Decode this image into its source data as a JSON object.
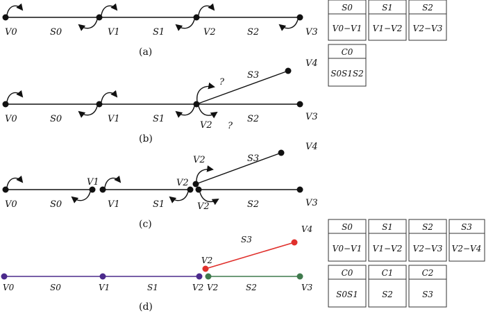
{
  "captions": {
    "a": "(a)",
    "b": "(b)",
    "c": "(c)",
    "d": "(d)"
  },
  "vertices": {
    "v0": "V0",
    "v1": "V1",
    "v2": "V2",
    "v3": "V3",
    "v4": "V4"
  },
  "segments": {
    "s0": "S0",
    "s1": "S1",
    "s2": "S2",
    "s3": "S3"
  },
  "question_mark": "?",
  "table_a": {
    "segments": [
      {
        "name": "S0",
        "range": "V0−V1"
      },
      {
        "name": "S1",
        "range": "V1−V2"
      },
      {
        "name": "S2",
        "range": "V2−V3"
      }
    ],
    "chains": [
      {
        "name": "C0",
        "members": "S0S1S2"
      }
    ]
  },
  "table_d": {
    "segments": [
      {
        "name": "S0",
        "range": "V0−V1"
      },
      {
        "name": "S1",
        "range": "V1−V2"
      },
      {
        "name": "S2",
        "range": "V2−V3"
      },
      {
        "name": "S3",
        "range": "V2−V4"
      }
    ],
    "chains": [
      {
        "name": "C0",
        "members": "S0S1"
      },
      {
        "name": "C1",
        "members": "S2"
      },
      {
        "name": "C2",
        "members": "S3"
      }
    ]
  },
  "colors": {
    "purple": "#4b2a8c",
    "red": "#e0302c",
    "green": "#3f7a4d",
    "black": "#111111"
  }
}
